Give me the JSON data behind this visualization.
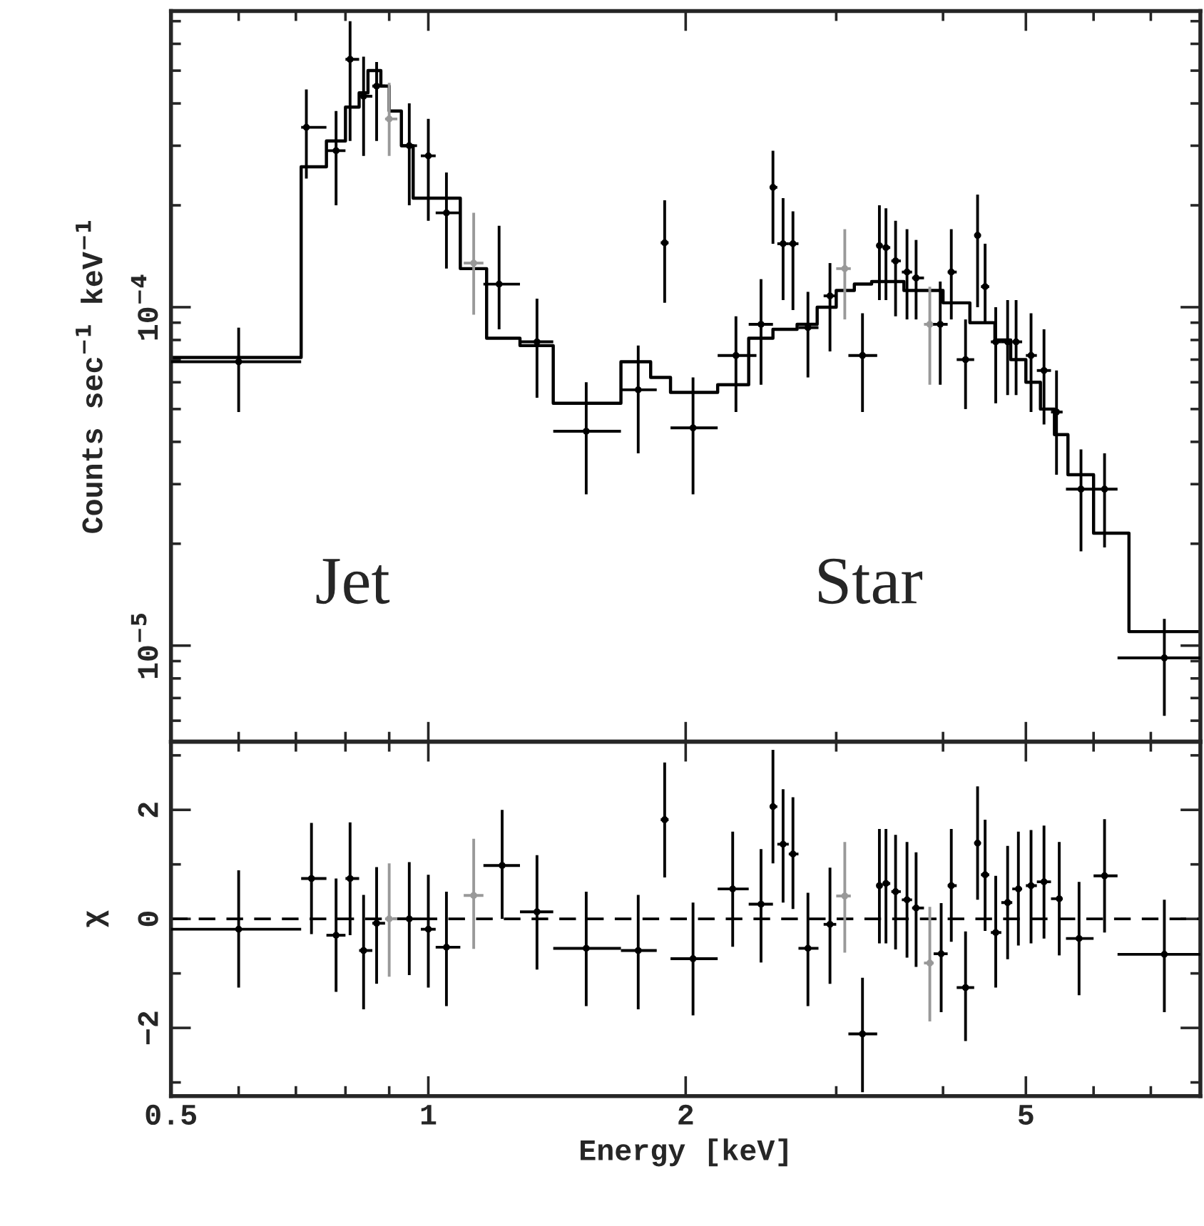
{
  "chart_data": [
    {
      "type": "scatter",
      "ylabel": "Counts sec$^{−1}$ keV$^{−1}$",
      "log": "xy",
      "xlim": [
        0.5,
        8
      ],
      "xticks": [
        0.5,
        1,
        2,
        5
      ],
      "ylim": [
        5.2e-06,
        0.00075
      ],
      "yticks": [
        {
          "value": 0.0001,
          "label": "10$^{−4}$"
        },
        {
          "value": 1e-05,
          "label": "10$^{−5}$"
        }
      ],
      "tick_labels": "y",
      "annotations": [
        "Jet",
        "Star"
      ],
      "series": [
        {
          "type": "step",
          "color": "#000000",
          "x": [
            0.5,
            0.71,
            0.76,
            0.8,
            0.83,
            0.85,
            0.88,
            0.9,
            0.93,
            0.96,
            1.09,
            1.17,
            1.28,
            1.4,
            1.68,
            1.82,
            1.92,
            2.18,
            2.37,
            2.53,
            2.7,
            2.85,
            3.0,
            3.15,
            3.3,
            3.6,
            4.0,
            4.3,
            4.6,
            4.8,
            5.0,
            5.2,
            5.4,
            5.6,
            6.0,
            6.6,
            8.0
          ],
          "values": [
            7.1e-05,
            0.00026,
            0.00031,
            0.00039,
            0.00043,
            0.0005,
            0.00045,
            0.00038,
            0.0003,
            0.00021,
            0.00013,
            8.1e-05,
            7.7e-05,
            5.2e-05,
            6.9e-05,
            6.2e-05,
            5.6e-05,
            5.9e-05,
            8.1e-05,
            8.6e-05,
            8.9e-05,
            0.0001,
            0.000112,
            0.000117,
            0.000119,
            0.000112,
            0.000103,
            9e-05,
            8e-05,
            7e-05,
            6e-05,
            5e-05,
            4.2e-05,
            3.2e-05,
            2.15e-05,
            1.1e-05,
            1.1e-05
          ]
        },
        {
          "color": "#999999",
          "x": [
            0.9,
            1.13,
            3.07,
            3.86
          ],
          "values": [
            0.00036,
            0.000135,
            0.00013,
            8.9e-05
          ],
          "errors": [
            [
              0.00028,
              0.00046
            ],
            [
              9.5e-05,
              0.00019
            ],
            [
              9.2e-05,
              0.00017
            ],
            [
              5.9e-05,
              0.000115
            ]
          ],
          "xerrors": [
            [
              0.89,
              0.92
            ],
            [
              1.1,
              1.16
            ],
            [
              3.0,
              3.12
            ],
            [
              3.8,
              3.9
            ]
          ]
        },
        {
          "color": "#000000",
          "x": [
            0.6,
            0.72,
            0.78,
            0.81,
            0.84,
            0.87,
            0.95,
            1.0,
            1.05,
            1.21,
            1.34,
            1.53,
            1.76,
            1.89,
            2.04,
            2.29,
            2.45,
            2.53,
            2.6,
            2.67,
            2.78,
            2.95,
            3.22,
            3.37,
            3.43,
            3.52,
            3.63,
            3.72,
            3.97,
            4.09,
            4.25,
            4.39,
            4.48,
            4.61,
            4.76,
            4.87,
            5.07,
            5.25,
            5.43,
            5.8,
            6.18,
            7.26
          ],
          "values": [
            6.9e-05,
            0.00034,
            0.00029,
            0.00054,
            0.00042,
            0.00045,
            0.0003,
            0.00028,
            0.00019,
            0.000117,
            7.9e-05,
            4.3e-05,
            5.7e-05,
            0.000155,
            4.4e-05,
            7.2e-05,
            8.9e-05,
            0.000226,
            0.000154,
            0.000154,
            8.7e-05,
            0.000108,
            7.2e-05,
            0.000152,
            0.00015,
            0.000137,
            0.000127,
            0.000122,
            8.9e-05,
            0.000127,
            7e-05,
            0.000163,
            0.000115,
            7.9e-05,
            7.9e-05,
            7.9e-05,
            7.2e-05,
            6.5e-05,
            4.9e-05,
            2.9e-05,
            2.9e-05,
            9.2e-06
          ],
          "errors": [
            [
              4.9e-05,
              8.7e-05
            ],
            [
              0.00024,
              0.00044
            ],
            [
              0.0002,
              0.00038
            ],
            [
              0.00031,
              0.0007
            ],
            [
              0.00028,
              0.00055
            ],
            [
              0.00031,
              0.00053
            ],
            [
              0.0002,
              0.0004
            ],
            [
              0.00018,
              0.00036
            ],
            [
              0.00013,
              0.00025
            ],
            [
              8.6e-05,
              0.000174
            ],
            [
              5.4e-05,
              0.000106
            ],
            [
              2.8e-05,
              6e-05
            ],
            [
              3.7e-05,
              7.7e-05
            ],
            [
              0.000103,
              0.000207
            ],
            [
              2.8e-05,
              6.2e-05
            ],
            [
              4.9e-05,
              9.4e-05
            ],
            [
              5.9e-05,
              0.000121
            ],
            [
              0.000154,
              0.00029
            ],
            [
              0.000105,
              0.00021
            ],
            [
              9.8e-05,
              0.000192
            ],
            [
              6.2e-05,
              0.000111
            ],
            [
              7.4e-05,
              0.000135
            ],
            [
              4.9e-05,
              9.6e-05
            ],
            [
              0.000105,
              0.0002
            ],
            [
              0.000105,
              0.000196
            ],
            [
              9.4e-05,
              0.00018
            ],
            [
              9.2e-05,
              0.00017
            ],
            [
              9.2e-05,
              0.000158
            ],
            [
              5.9e-05,
              0.000119
            ],
            [
              9.2e-05,
              0.00017
            ],
            [
              5e-05,
              9.2e-05
            ],
            [
              0.0001,
              0.000215
            ],
            [
              8.9e-05,
              0.000154
            ],
            [
              5.2e-05,
              0.0001
            ],
            [
              5.5e-05,
              0.000105
            ],
            [
              5.5e-05,
              0.000105
            ],
            [
              4.9e-05,
              9.6e-05
            ],
            [
              4.5e-05,
              8.6e-05
            ],
            [
              3.2e-05,
              6.5e-05
            ],
            [
              1.9e-05,
              3.8e-05
            ],
            [
              1.95e-05,
              3.7e-05
            ],
            [
              6.2e-06,
              1.2e-05
            ]
          ],
          "xerrors": [
            [
              0.5,
              0.71
            ],
            [
              0.71,
              0.76
            ],
            [
              0.76,
              0.8
            ],
            [
              0.8,
              0.83
            ],
            [
              0.83,
              0.86
            ],
            [
              0.86,
              0.89
            ],
            [
              0.93,
              0.97
            ],
            [
              0.98,
              1.02
            ],
            [
              1.02,
              1.09
            ],
            [
              1.16,
              1.28
            ],
            [
              1.28,
              1.4
            ],
            [
              1.4,
              1.68
            ],
            [
              1.68,
              1.85
            ],
            [
              1.87,
              1.91
            ],
            [
              1.92,
              2.18
            ],
            [
              2.18,
              2.42
            ],
            [
              2.37,
              2.53
            ],
            [
              2.51,
              2.56
            ],
            [
              2.56,
              2.64
            ],
            [
              2.64,
              2.71
            ],
            [
              2.71,
              2.86
            ],
            [
              2.9,
              3.0
            ],
            [
              3.1,
              3.35
            ],
            [
              3.35,
              3.4
            ],
            [
              3.4,
              3.47
            ],
            [
              3.48,
              3.57
            ],
            [
              3.58,
              3.68
            ],
            [
              3.68,
              3.8
            ],
            [
              3.85,
              4.05
            ],
            [
              4.05,
              4.15
            ],
            [
              4.15,
              4.35
            ],
            [
              4.35,
              4.43
            ],
            [
              4.43,
              4.53
            ],
            [
              4.55,
              4.68
            ],
            [
              4.68,
              4.82
            ],
            [
              4.82,
              4.95
            ],
            [
              5.0,
              5.15
            ],
            [
              5.15,
              5.35
            ],
            [
              5.35,
              5.52
            ],
            [
              5.57,
              6.0
            ],
            [
              6.0,
              6.4
            ],
            [
              6.4,
              8.0
            ]
          ]
        }
      ]
    },
    {
      "type": "scatter",
      "xlabel": "Energy [keV]",
      "ylabel": "χ",
      "log": "x",
      "xlim": [
        0.5,
        8
      ],
      "xticks": [
        0.5,
        1,
        2,
        5
      ],
      "ylim": [
        -3.25,
        3.25
      ],
      "yticks": [
        {
          "value": -2,
          "label": "−2"
        },
        0,
        2
      ],
      "ref_lines": [
        {
          "axis": "y",
          "value": 0,
          "color": "#000000",
          "line_style": "dashed"
        }
      ],
      "series": [
        {
          "color": "#999999",
          "x": [
            0.9,
            1.13,
            3.07,
            3.86
          ],
          "values": [
            0,
            0.43,
            0.42,
            -0.81
          ],
          "errors": [
            [
              -1.06,
              1.02
            ],
            [
              -0.55,
              1.47
            ],
            [
              -0.62,
              1.41
            ],
            [
              -1.88,
              0.22
            ]
          ],
          "xerrors": [
            [
              0.89,
              0.92
            ],
            [
              1.1,
              1.16
            ],
            [
              3.0,
              3.12
            ],
            [
              3.8,
              3.9
            ]
          ]
        },
        {
          "color": "#000000",
          "x": [
            0.6,
            0.73,
            0.78,
            0.81,
            0.84,
            0.87,
            0.95,
            1.0,
            1.05,
            1.22,
            1.34,
            1.53,
            1.76,
            1.89,
            2.04,
            2.27,
            2.45,
            2.53,
            2.6,
            2.67,
            2.78,
            2.95,
            3.22,
            3.37,
            3.43,
            3.52,
            3.63,
            3.72,
            3.98,
            4.09,
            4.25,
            4.39,
            4.48,
            4.61,
            4.76,
            4.9,
            5.07,
            5.25,
            5.47,
            5.77,
            6.18,
            7.26
          ],
          "values": [
            -0.19,
            0.74,
            -0.3,
            0.74,
            -0.58,
            -0.08,
            0,
            -0.19,
            -0.52,
            0.98,
            0.13,
            -0.54,
            -0.58,
            1.82,
            -0.73,
            0.55,
            0.27,
            2.06,
            1.37,
            1.19,
            -0.54,
            -0.1,
            -2.11,
            0.61,
            0.65,
            0.5,
            0.35,
            0.2,
            -0.64,
            0.61,
            -1.26,
            1.39,
            0.81,
            -0.25,
            0.3,
            0.55,
            0.61,
            0.68,
            0.37,
            -0.36,
            0.79,
            -0.65
          ],
          "errors": [
            [
              -1.26,
              0.89
            ],
            [
              -0.28,
              1.76
            ],
            [
              -1.34,
              0.74
            ],
            [
              -0.3,
              1.77
            ],
            [
              -1.66,
              0.44
            ],
            [
              -1.19,
              0.95
            ],
            [
              -1.03,
              1.04
            ],
            [
              -1.26,
              0.81
            ],
            [
              -1.6,
              0.5
            ],
            [
              0,
              2.0
            ],
            [
              -0.93,
              1.17
            ],
            [
              -1.6,
              0.5
            ],
            [
              -1.66,
              0.44
            ],
            [
              0.76,
              2.87
            ],
            [
              -1.77,
              0.3
            ],
            [
              -0.51,
              1.6
            ],
            [
              -0.8,
              1.28
            ],
            [
              1.02,
              3.1
            ],
            [
              0.3,
              2.38
            ],
            [
              0.18,
              2.23
            ],
            [
              -1.6,
              0.48
            ],
            [
              -1.19,
              0.94
            ],
            [
              -3.18,
              -1.08
            ],
            [
              -0.45,
              1.65
            ],
            [
              -0.45,
              1.65
            ],
            [
              -0.56,
              1.54
            ],
            [
              -0.71,
              1.41
            ],
            [
              -0.88,
              1.22
            ],
            [
              -1.71,
              0.29
            ],
            [
              -0.42,
              1.65
            ],
            [
              -2.24,
              -0.23
            ],
            [
              0.35,
              2.43
            ],
            [
              -0.22,
              1.82
            ],
            [
              -1.26,
              0.79
            ],
            [
              -0.74,
              1.34
            ],
            [
              -0.49,
              1.6
            ],
            [
              -0.45,
              1.63
            ],
            [
              -0.36,
              1.71
            ],
            [
              -0.67,
              1.41
            ],
            [
              -1.4,
              0.68
            ],
            [
              -0.25,
              1.83
            ],
            [
              -1.71,
              0.35
            ]
          ],
          "xerrors": [
            [
              0.5,
              0.71
            ],
            [
              0.71,
              0.76
            ],
            [
              0.76,
              0.8
            ],
            [
              0.8,
              0.83
            ],
            [
              0.83,
              0.86
            ],
            [
              0.86,
              0.89
            ],
            [
              0.92,
              0.98
            ],
            [
              0.98,
              1.02
            ],
            [
              1.02,
              1.09
            ],
            [
              1.16,
              1.28
            ],
            [
              1.28,
              1.4
            ],
            [
              1.4,
              1.68
            ],
            [
              1.68,
              1.85
            ],
            [
              1.87,
              1.91
            ],
            [
              1.92,
              2.18
            ],
            [
              2.18,
              2.37
            ],
            [
              2.37,
              2.53
            ],
            [
              2.51,
              2.56
            ],
            [
              2.56,
              2.64
            ],
            [
              2.64,
              2.71
            ],
            [
              2.71,
              2.86
            ],
            [
              2.9,
              3.0
            ],
            [
              3.1,
              3.35
            ],
            [
              3.35,
              3.4
            ],
            [
              3.4,
              3.47
            ],
            [
              3.48,
              3.57
            ],
            [
              3.58,
              3.68
            ],
            [
              3.68,
              3.8
            ],
            [
              3.9,
              4.05
            ],
            [
              4.05,
              4.15
            ],
            [
              4.15,
              4.35
            ],
            [
              4.35,
              4.43
            ],
            [
              4.43,
              4.53
            ],
            [
              4.55,
              4.68
            ],
            [
              4.68,
              4.82
            ],
            [
              4.82,
              4.95
            ],
            [
              5.0,
              5.15
            ],
            [
              5.15,
              5.35
            ],
            [
              5.35,
              5.52
            ],
            [
              5.57,
              6.0
            ],
            [
              6.0,
              6.4
            ],
            [
              6.4,
              8.0
            ]
          ]
        }
      ]
    }
  ]
}
